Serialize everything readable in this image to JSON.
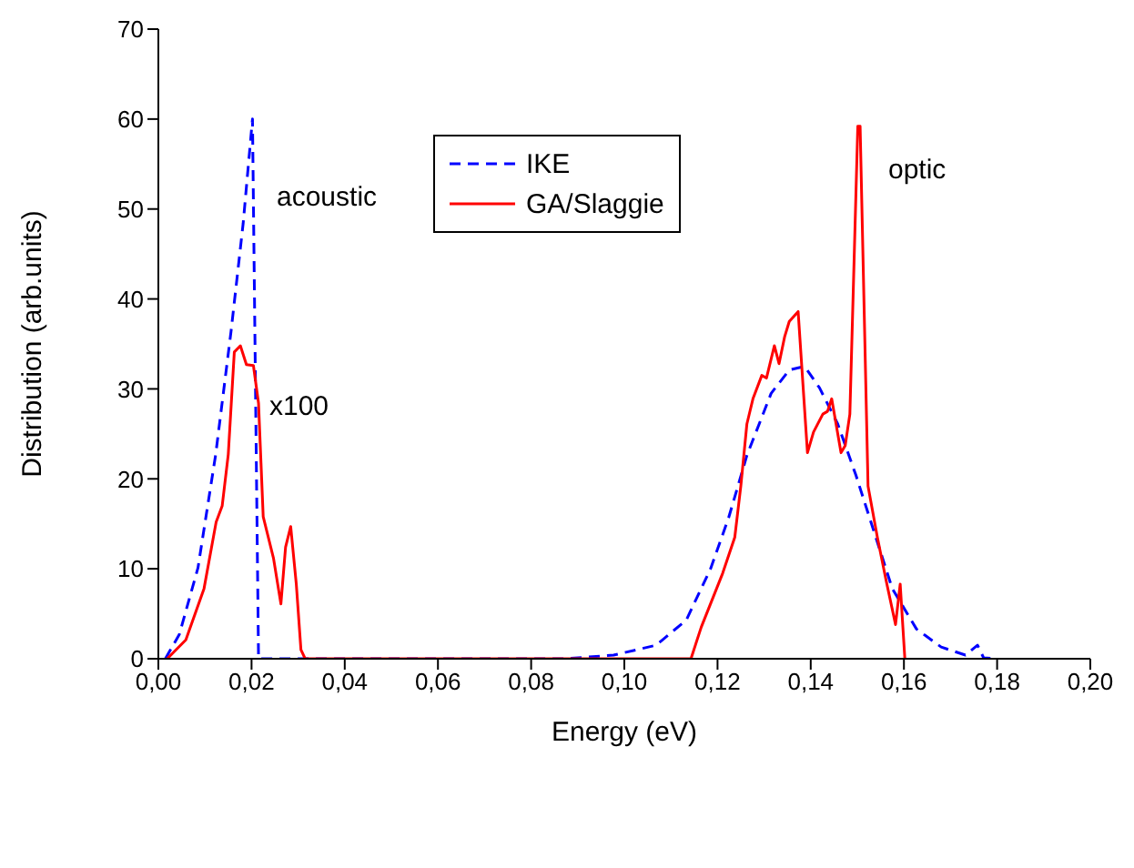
{
  "chart_data": {
    "type": "line",
    "xlabel": "Energy (eV)",
    "ylabel": "Distribution (arb.units)",
    "xlim": [
      0,
      0.2
    ],
    "ylim": [
      0,
      70
    ],
    "xticks": [
      {
        "value": 0,
        "label": "0,00"
      },
      {
        "value": 0.02,
        "label": "0,02"
      },
      {
        "value": 0.04,
        "label": "0,04"
      },
      {
        "value": 0.06,
        "label": "0,06"
      },
      {
        "value": 0.08,
        "label": "0,08"
      },
      {
        "value": 0.1,
        "label": "0,10"
      },
      {
        "value": 0.12,
        "label": "0,12"
      },
      {
        "value": 0.14,
        "label": "0,14"
      },
      {
        "value": 0.16,
        "label": "0,16"
      },
      {
        "value": 0.18,
        "label": "0,18"
      },
      {
        "value": 0.2,
        "label": "0,20"
      }
    ],
    "yticks": [
      0,
      10,
      20,
      30,
      40,
      50,
      60,
      70
    ],
    "grid": false,
    "legend": "top",
    "marker": "none",
    "annotations": [
      "acoustic",
      "x100",
      "optic"
    ],
    "series": [
      {
        "name": "IKE",
        "color": "#0000ff",
        "line_style": "dashed",
        "x": [
          0.0015,
          0.0045,
          0.0085,
          0.0123,
          0.0156,
          0.0182,
          0.0202,
          0.0215,
          0.0872,
          0.0977,
          0.1068,
          0.1133,
          0.1185,
          0.1224,
          0.1263,
          0.1315,
          0.1354,
          0.1387,
          0.1419,
          0.1458,
          0.1497,
          0.1536,
          0.1575,
          0.1627,
          0.168,
          0.1732,
          0.1758,
          0.1771,
          0.1797
        ],
        "values": [
          0,
          2.7,
          10.1,
          22.7,
          36.4,
          48.4,
          60,
          0,
          0,
          0.4,
          1.5,
          4.3,
          10,
          15.7,
          22.6,
          29.5,
          32.1,
          32.5,
          30.1,
          26.1,
          20.4,
          14.1,
          7.8,
          3.3,
          1.3,
          0.4,
          1.5,
          0.1,
          0
        ]
      },
      {
        "name": "GA/Slaggie",
        "color": "#ff0000",
        "line_style": "solid",
        "x": [
          0.0019,
          0.0059,
          0.0098,
          0.0124,
          0.0137,
          0.015,
          0.0163,
          0.0176,
          0.0189,
          0.0204,
          0.0215,
          0.0225,
          0.0247,
          0.0263,
          0.0273,
          0.0284,
          0.0296,
          0.0306,
          0.0315,
          0.1143,
          0.1165,
          0.1211,
          0.1237,
          0.125,
          0.1263,
          0.1276,
          0.1295,
          0.1305,
          0.1322,
          0.1332,
          0.1344,
          0.1354,
          0.1373,
          0.1393,
          0.1406,
          0.1426,
          0.1436,
          0.1445,
          0.1465,
          0.1474,
          0.1484,
          0.1501,
          0.1506,
          0.1523,
          0.1543,
          0.1563,
          0.1582,
          0.1592,
          0.1602
        ],
        "values": [
          0,
          2.1,
          7.8,
          15.2,
          17,
          22.7,
          34.1,
          34.8,
          32.7,
          32.6,
          28.4,
          15.8,
          11.2,
          6.1,
          12.4,
          14.7,
          8.3,
          1,
          0,
          0,
          3.5,
          9.5,
          13.5,
          19.2,
          26.1,
          28.9,
          31.5,
          31.2,
          34.8,
          32.8,
          35.8,
          37.5,
          38.6,
          22.9,
          25.2,
          27.2,
          27.5,
          28.9,
          22.9,
          23.7,
          27.2,
          59.2,
          59.2,
          19.2,
          13.5,
          8.4,
          3.8,
          8.3,
          0
        ]
      }
    ]
  }
}
